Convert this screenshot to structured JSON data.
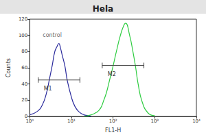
{
  "chart_data": {
    "type": "line",
    "title": "Hela",
    "x_label": "FL1-H",
    "y_label": "Counts",
    "log": "x",
    "xlim": [
      1,
      10000
    ],
    "xticks": [
      {
        "value": 1,
        "label": "10⁰"
      },
      {
        "value": 10,
        "label": "10¹"
      },
      {
        "value": 100,
        "label": "10²"
      },
      {
        "value": 1000,
        "label": "10³"
      },
      {
        "value": 10000,
        "label": "10⁴"
      }
    ],
    "ylim": [
      0,
      120
    ],
    "yticks": [
      0,
      20,
      40,
      60,
      80,
      100,
      120
    ],
    "grid": false,
    "series": [
      {
        "color": "#2a2a9c",
        "x": [
          1,
          1.5,
          2,
          2.5,
          3,
          3.5,
          4,
          4.5,
          5,
          5.5,
          6,
          7,
          8,
          10,
          12,
          15,
          20,
          25,
          30
        ],
        "values": [
          2,
          6,
          14,
          28,
          47,
          64,
          80,
          86,
          90,
          84,
          76,
          62,
          44,
          24,
          13,
          6,
          2,
          1,
          0
        ]
      },
      {
        "color": "#2ecc40",
        "x": [
          20,
          30,
          40,
          50,
          60,
          70,
          80,
          100,
          120,
          150,
          180,
          200,
          250,
          300,
          350,
          400,
          500,
          700,
          1000
        ],
        "values": [
          0,
          2,
          5,
          10,
          20,
          30,
          42,
          62,
          80,
          100,
          112,
          115,
          100,
          80,
          60,
          40,
          18,
          4,
          1
        ]
      }
    ],
    "gates": [
      {
        "label": "M1",
        "range": [
          1.6,
          16
        ],
        "y": 45
      },
      {
        "label": "M2",
        "range": [
          55,
          550
        ],
        "y": 63
      }
    ],
    "annotations": [
      {
        "text": "control",
        "x": 1.7,
        "y": 100
      }
    ]
  }
}
